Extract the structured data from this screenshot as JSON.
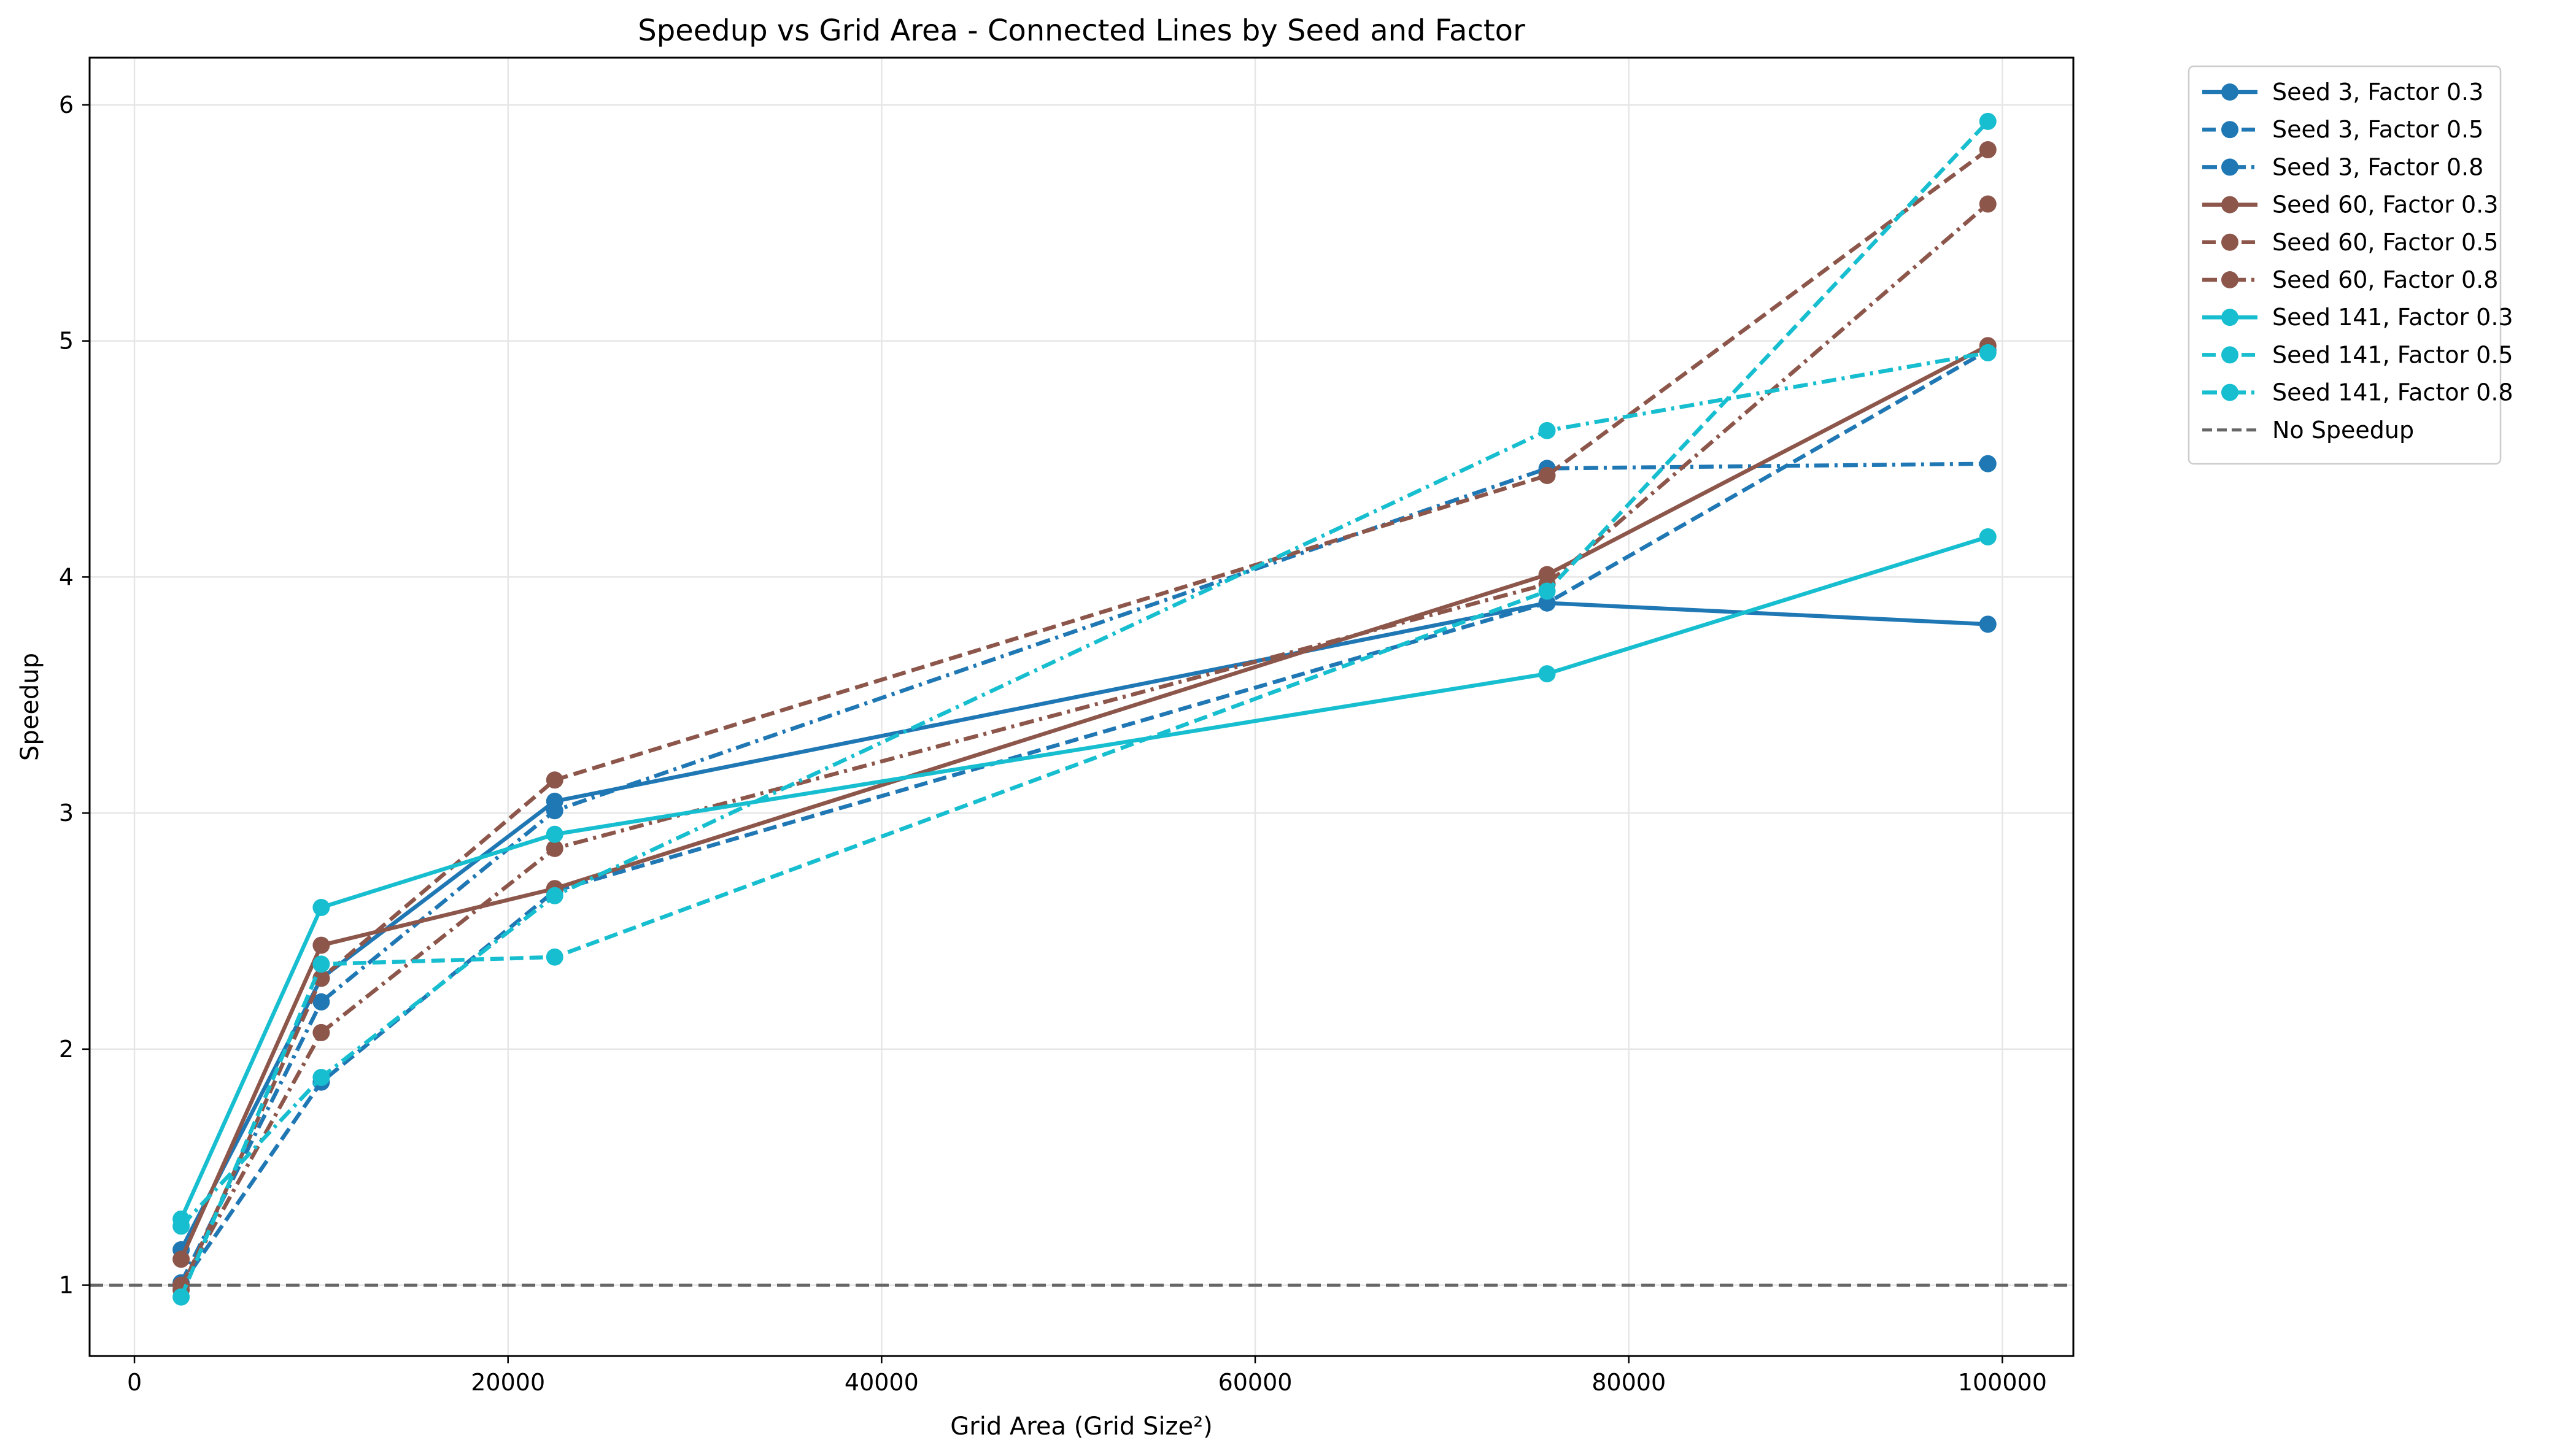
{
  "chart_data": {
    "type": "line",
    "title": "Speedup vs Grid Area - Connected Lines by Seed and Factor",
    "xlabel": "Grid Area (Grid Size²)",
    "ylabel": "Speedup",
    "xlim": [
      -2400,
      103800
    ],
    "ylim": [
      0.7,
      6.2
    ],
    "xticks": [
      0,
      20000,
      40000,
      60000,
      80000,
      100000
    ],
    "xtick_labels": [
      "0",
      "20000",
      "40000",
      "60000",
      "80000",
      "100000"
    ],
    "yticks": [
      1,
      2,
      3,
      4,
      5,
      6
    ],
    "ytick_labels": [
      "1",
      "2",
      "3",
      "4",
      "5",
      "6"
    ],
    "grid": true,
    "legend_position": "outside-top-right",
    "x": [
      2500,
      10000,
      22500,
      75625,
      99225
    ],
    "series": [
      {
        "name": "Seed 3, Factor 0.3",
        "color": "#1f77b4",
        "dash": "solid",
        "values": [
          1.15,
          2.3,
          3.05,
          3.89,
          3.8
        ]
      },
      {
        "name": "Seed 3, Factor 0.5",
        "color": "#1f77b4",
        "dash": "dashed",
        "values": [
          1.0,
          1.86,
          2.67,
          3.89,
          4.96
        ]
      },
      {
        "name": "Seed 3, Factor 0.8",
        "color": "#1f77b4",
        "dash": "dashdot",
        "values": [
          1.01,
          2.2,
          3.01,
          4.46,
          4.48
        ]
      },
      {
        "name": "Seed 60, Factor 0.3",
        "color": "#8c564b",
        "dash": "solid",
        "values": [
          1.11,
          2.44,
          2.68,
          4.01,
          4.98
        ]
      },
      {
        "name": "Seed 60, Factor 0.5",
        "color": "#8c564b",
        "dash": "dashed",
        "values": [
          0.98,
          2.3,
          3.14,
          4.43,
          5.81
        ]
      },
      {
        "name": "Seed 60, Factor 0.8",
        "color": "#8c564b",
        "dash": "dashdot",
        "values": [
          1.0,
          2.07,
          2.85,
          3.97,
          5.58
        ]
      },
      {
        "name": "Seed 141, Factor 0.3",
        "color": "#17becf",
        "dash": "solid",
        "values": [
          1.28,
          2.6,
          2.91,
          3.59,
          4.17
        ]
      },
      {
        "name": "Seed 141, Factor 0.5",
        "color": "#17becf",
        "dash": "dashed",
        "values": [
          0.95,
          2.36,
          2.39,
          3.94,
          5.93
        ]
      },
      {
        "name": "Seed 141, Factor 0.8",
        "color": "#17becf",
        "dash": "dashdot",
        "values": [
          1.25,
          1.88,
          2.65,
          4.62,
          4.95
        ]
      }
    ],
    "reference_line": {
      "name": "No Speedup",
      "y": 1,
      "color": "#666666",
      "dash": "dashed"
    }
  }
}
